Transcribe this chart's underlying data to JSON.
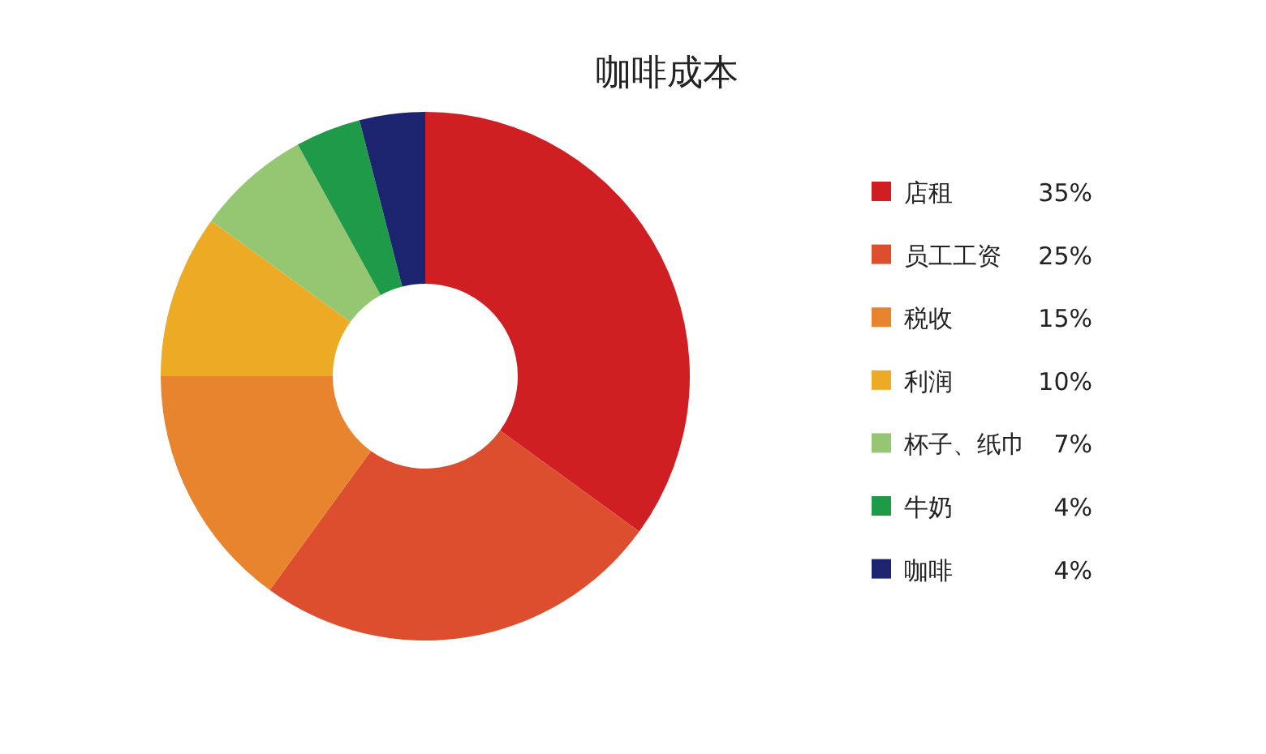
{
  "chart_data": {
    "type": "donut",
    "title": "咖啡成本",
    "categories": [
      "店租",
      "员工工资",
      "税收",
      "利润",
      "杯子、纸巾",
      "牛奶",
      "咖啡"
    ],
    "values": [
      35,
      25,
      15,
      10,
      7,
      4,
      4
    ],
    "value_labels": [
      "35%",
      "25%",
      "15%",
      "10%",
      "7%",
      "4%",
      "4%"
    ],
    "colors": [
      "#d01f23",
      "#dd4e2f",
      "#e8832e",
      "#edaa25",
      "#95c671",
      "#1f9a48",
      "#1c2470"
    ],
    "legend": "right"
  }
}
